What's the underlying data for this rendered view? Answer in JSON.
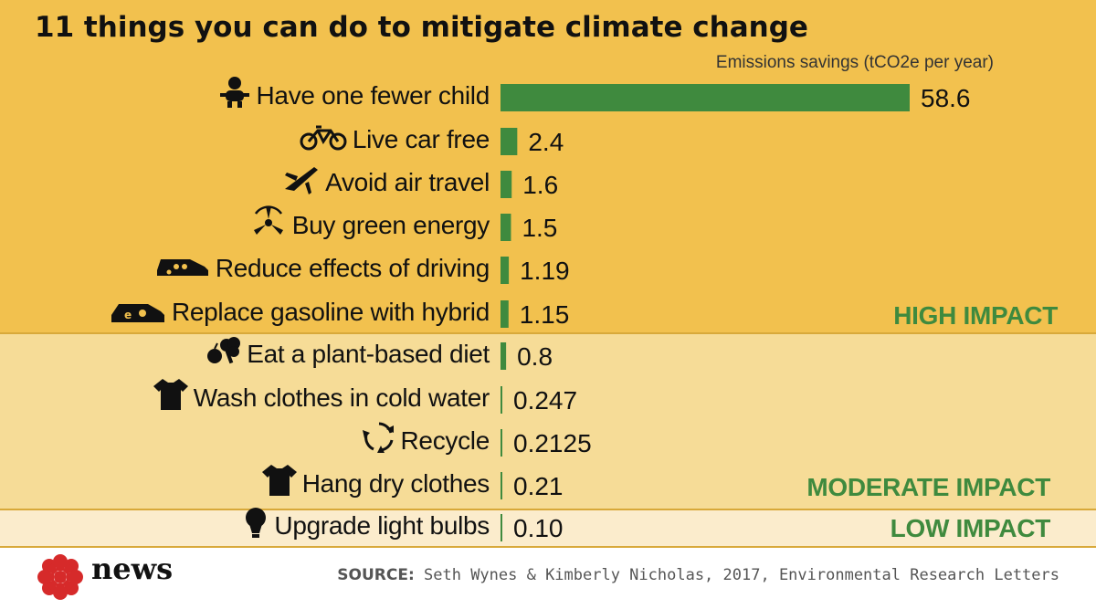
{
  "colors": {
    "high_bg": "#f2c14e",
    "moderate_bg": "#f6dc97",
    "low_bg": "#fbeccc",
    "bar": "#3f8a3e",
    "impact_text": "#3f8a3e",
    "logo_red": "#d62a2a"
  },
  "chart_data": {
    "type": "bar",
    "orientation": "horizontal",
    "title": "11 things you can do to mitigate climate change",
    "value_axis_label": "Emissions savings (tCO2e per year)",
    "categories": [
      "Have one fewer child",
      "Live car free",
      "Avoid air travel",
      "Buy green energy",
      "Reduce effects of driving",
      "Replace gasoline with hybrid",
      "Eat a plant-based diet",
      "Wash clothes in cold water",
      "Recycle",
      "Hang dry clothes",
      "Upgrade light bulbs"
    ],
    "values": [
      58.6,
      2.4,
      1.6,
      1.5,
      1.19,
      1.15,
      0.8,
      0.247,
      0.2125,
      0.21,
      0.1
    ],
    "value_labels": [
      "58.6",
      "2.4",
      "1.6",
      "1.5",
      "1.19",
      "1.15",
      "0.8",
      "0.247",
      "0.2125",
      "0.21",
      "0.10"
    ],
    "icons": [
      "baby-icon",
      "bicycle-icon",
      "airplane-icon",
      "wind-turbine-icon",
      "car-icon",
      "hybrid-car-icon",
      "apple-broccoli-icon",
      "tshirt-icon",
      "recycle-icon",
      "tshirt-icon",
      "light-bulb-icon"
    ],
    "groups": [
      {
        "label": "HIGH IMPACT",
        "start": 0,
        "end": 5
      },
      {
        "label": "MODERATE IMPACT",
        "start": 6,
        "end": 9
      },
      {
        "label": "LOW IMPACT",
        "start": 10,
        "end": 10
      }
    ],
    "xlim": [
      0,
      58.6
    ],
    "grid": false,
    "legend": "none"
  },
  "footer": {
    "brand": "news",
    "source_label": "SOURCE:",
    "source_text": " Seth Wynes & Kimberly Nicholas, 2017, Environmental Research Letters"
  }
}
